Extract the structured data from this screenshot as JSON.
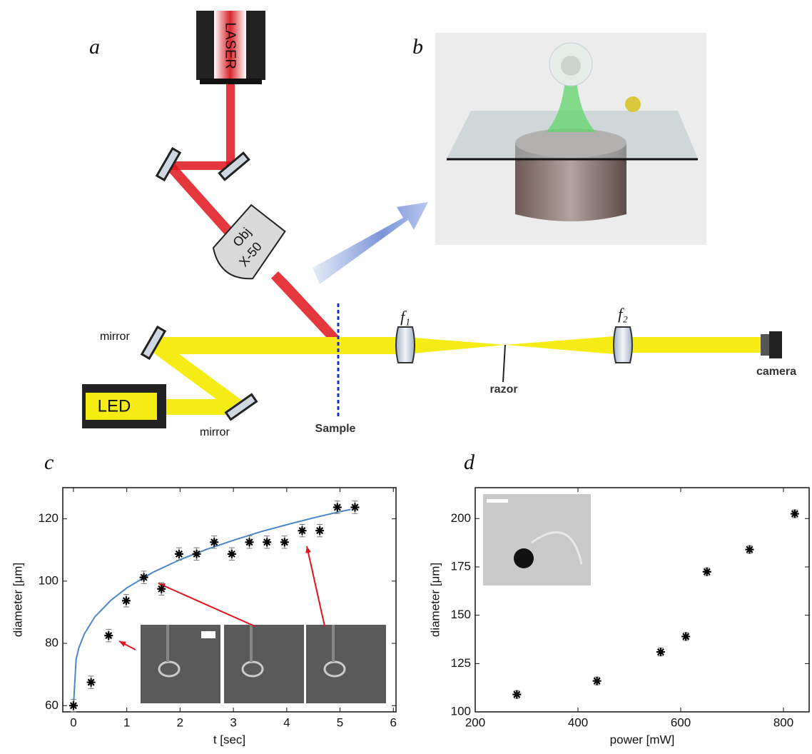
{
  "figure": {
    "panels": [
      "a",
      "b",
      "c",
      "d"
    ],
    "diagram": {
      "laser": "LASER",
      "objective": [
        "Obj",
        "X-50"
      ],
      "mirror_top": "mirror",
      "mirror_bottom": "mirror",
      "led": "LED",
      "sample": "Sample",
      "lens1": "f₁",
      "lens2": "f₂",
      "razor": "razor",
      "camera": "camera"
    }
  },
  "chart_data": [
    {
      "type": "scatter",
      "x_label": "t [sec]",
      "y_label": "diameter [μm]",
      "xlim": [
        -0.2,
        6.05
      ],
      "ylim": [
        58,
        130
      ],
      "xticks": [
        0,
        1,
        2,
        3,
        4,
        5,
        6
      ],
      "yticks": [
        60,
        80,
        100,
        120
      ],
      "series": [
        {
          "color": "#000000",
          "x": [
            0,
            0.33,
            0.66,
            0.99,
            1.32,
            1.65,
            1.98,
            2.31,
            2.64,
            2.97,
            3.3,
            3.63,
            3.96,
            4.29,
            4.62,
            4.95,
            5.28
          ],
          "values": [
            60,
            67.5,
            82.5,
            93.7,
            101.2,
            97.5,
            108.7,
            108.7,
            112.5,
            108.7,
            112.5,
            112.5,
            112.5,
            116.2,
            116.2,
            123.7,
            123.7
          ],
          "errors": [
            2,
            2,
            2,
            2,
            2,
            2,
            2,
            2,
            2,
            2,
            2,
            2,
            2,
            2,
            2,
            2,
            2
          ]
        }
      ],
      "fit": {
        "color": "#4a86c5",
        "x": [
          0,
          0.05,
          0.1,
          0.2,
          0.4,
          0.7,
          1,
          1.5,
          2,
          2.5,
          3,
          3.5,
          4,
          4.5,
          5,
          5.2
        ],
        "values": [
          60,
          74.9,
          78.5,
          82.9,
          88.5,
          93.8,
          97.8,
          102.9,
          106.9,
          110.2,
          113.1,
          115.8,
          118.1,
          120.3,
          122.3,
          123
        ]
      }
    },
    {
      "type": "scatter",
      "x_label": "power [mW]",
      "y_label": "diameter [μm]",
      "xlim": [
        200,
        850
      ],
      "ylim": [
        100,
        216
      ],
      "xticks": [
        200,
        400,
        600,
        800
      ],
      "yticks": [
        100,
        125,
        150,
        175,
        200
      ],
      "series": [
        {
          "color": "#000000",
          "x": [
            281,
            437,
            561,
            610,
            651,
            734,
            822
          ],
          "values": [
            109,
            116,
            131,
            139,
            172.5,
            184,
            202.5
          ],
          "errors": [
            2,
            2,
            2,
            2,
            2,
            2,
            2
          ]
        }
      ]
    }
  ]
}
